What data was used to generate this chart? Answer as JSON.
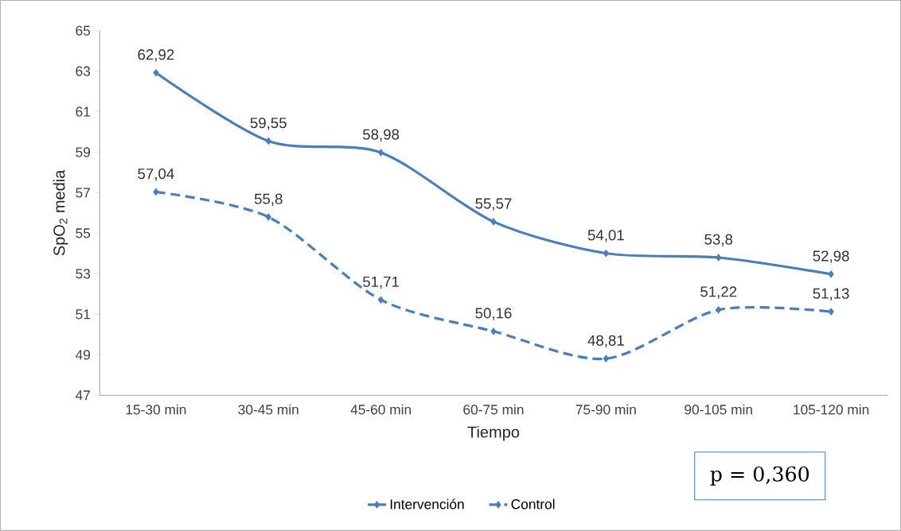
{
  "chart_data": {
    "type": "line",
    "xlabel": "Tiempo",
    "ylabel": "SpO$_{2}$ media",
    "categories": [
      "15-30 min",
      "30-45 min",
      "45-60 min",
      "60-75 min",
      "75-90 min",
      "90-105 min",
      "105-120 min"
    ],
    "series": [
      {
        "name": "Intervención",
        "color": "#4a7ebb",
        "line_style": "solid",
        "values": [
          62.92,
          59.55,
          58.98,
          55.57,
          54.01,
          53.8,
          52.98
        ],
        "value_labels": [
          "62,92",
          "59,55",
          "58,98",
          "55,57",
          "54,01",
          "53,8",
          "52,98"
        ]
      },
      {
        "name": "Control",
        "color": "#4a7ebb",
        "line_style": "dashed",
        "values": [
          57.04,
          55.8,
          51.71,
          50.16,
          48.81,
          51.22,
          51.13
        ],
        "value_labels": [
          "57,04",
          "55,8",
          "51,71",
          "50,16",
          "48,81",
          "51,22",
          "51,13"
        ]
      }
    ],
    "ylim": [
      47,
      65
    ],
    "yticks": [
      47,
      49,
      51,
      53,
      55,
      57,
      59,
      61,
      63,
      65
    ],
    "grid": false,
    "legend": "bottom",
    "marker": "diamond",
    "annotations": [
      "p = 0,360"
    ]
  }
}
